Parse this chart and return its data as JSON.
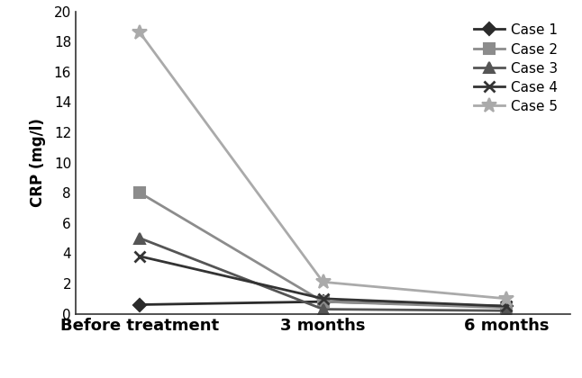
{
  "x_labels": [
    "Before treatment",
    "3 months",
    "6 months"
  ],
  "x_positions": [
    0,
    1,
    2
  ],
  "cases": [
    {
      "name": "Case 1",
      "values": [
        0.6,
        0.8,
        0.5
      ],
      "color": "#2b2b2b",
      "marker": "D",
      "markersize": 7,
      "linewidth": 2.0
    },
    {
      "name": "Case 2",
      "values": [
        8.0,
        0.8,
        0.4
      ],
      "color": "#8c8c8c",
      "marker": "s",
      "markersize": 8,
      "linewidth": 2.0
    },
    {
      "name": "Case 3",
      "values": [
        5.0,
        0.3,
        0.2
      ],
      "color": "#555555",
      "marker": "^",
      "markersize": 8,
      "linewidth": 2.0
    },
    {
      "name": "Case 4",
      "values": [
        3.8,
        1.0,
        0.5
      ],
      "color": "#333333",
      "marker": "x",
      "markersize": 9,
      "linewidth": 2.0,
      "markeredgewidth": 2.0
    },
    {
      "name": "Case 5",
      "values": [
        18.6,
        2.1,
        1.0
      ],
      "color": "#aaaaaa",
      "marker": "*",
      "markersize": 12,
      "linewidth": 2.0
    }
  ],
  "ylabel": "CRP (mg/l)",
  "ylim": [
    0,
    20
  ],
  "yticks": [
    0,
    2,
    4,
    6,
    8,
    10,
    12,
    14,
    16,
    18,
    20
  ],
  "background_color": "#ffffff",
  "legend_fontsize": 11,
  "ylabel_fontsize": 12,
  "tick_fontsize": 11,
  "xlabel_fontsize": 13
}
